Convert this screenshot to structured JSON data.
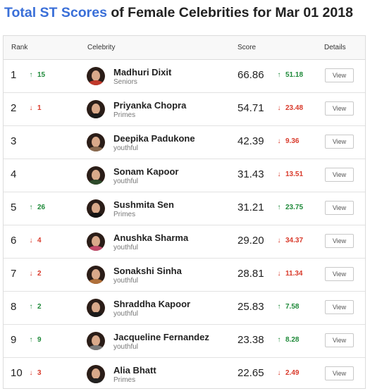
{
  "title": {
    "link": "Total ST Scores",
    "rest": " of Female Celebrities for Mar 01 2018"
  },
  "headers": {
    "rank": "Rank",
    "celebrity": "Celebrity",
    "score": "Score",
    "details": "Details"
  },
  "colors": {
    "up": "#1f8a3a",
    "down": "#d93a2b",
    "title_link": "#3a6fd8"
  },
  "rows": [
    {
      "rank": "1",
      "rank_dir": "up",
      "rank_change": "15",
      "name": "Madhuri Dixit",
      "category": "Seniors",
      "score": "66.86",
      "score_dir": "up",
      "score_change": "51.18",
      "view": "View",
      "shirt": "#c0392b"
    },
    {
      "rank": "2",
      "rank_dir": "down",
      "rank_change": "1",
      "name": "Priyanka Chopra",
      "category": "Primes",
      "score": "54.71",
      "score_dir": "down",
      "score_change": "23.48",
      "view": "View",
      "shirt": "#1a1a1a"
    },
    {
      "rank": "3",
      "rank_dir": "",
      "rank_change": "",
      "name": "Deepika Padukone",
      "category": "youthful",
      "score": "42.39",
      "score_dir": "down",
      "score_change": "9.36",
      "view": "View",
      "shirt": "#8a6a50"
    },
    {
      "rank": "4",
      "rank_dir": "",
      "rank_change": "",
      "name": "Sonam Kapoor",
      "category": "youthful",
      "score": "31.43",
      "score_dir": "down",
      "score_change": "13.51",
      "view": "View",
      "shirt": "#2d4a2a"
    },
    {
      "rank": "5",
      "rank_dir": "up",
      "rank_change": "26",
      "name": "Sushmita Sen",
      "category": "Primes",
      "score": "31.21",
      "score_dir": "up",
      "score_change": "23.75",
      "view": "View",
      "shirt": "#111111"
    },
    {
      "rank": "6",
      "rank_dir": "down",
      "rank_change": "4",
      "name": "Anushka Sharma",
      "category": "youthful",
      "score": "29.20",
      "score_dir": "down",
      "score_change": "34.37",
      "view": "View",
      "shirt": "#c24a6a"
    },
    {
      "rank": "7",
      "rank_dir": "down",
      "rank_change": "2",
      "name": "Sonakshi Sinha",
      "category": "youthful",
      "score": "28.81",
      "score_dir": "down",
      "score_change": "11.34",
      "view": "View",
      "shirt": "#b0703a"
    },
    {
      "rank": "8",
      "rank_dir": "up",
      "rank_change": "2",
      "name": "Shraddha Kapoor",
      "category": "youthful",
      "score": "25.83",
      "score_dir": "up",
      "score_change": "7.58",
      "view": "View",
      "shirt": "#1a1a1a"
    },
    {
      "rank": "9",
      "rank_dir": "up",
      "rank_change": "9",
      "name": "Jacqueline Fernandez",
      "category": "youthful",
      "score": "23.38",
      "score_dir": "up",
      "score_change": "8.28",
      "view": "View",
      "shirt": "#7a7a7a"
    },
    {
      "rank": "10",
      "rank_dir": "down",
      "rank_change": "3",
      "name": "Alia Bhatt",
      "category": "Primes",
      "score": "22.65",
      "score_dir": "down",
      "score_change": "2.49",
      "view": "View",
      "shirt": "#222222"
    }
  ]
}
